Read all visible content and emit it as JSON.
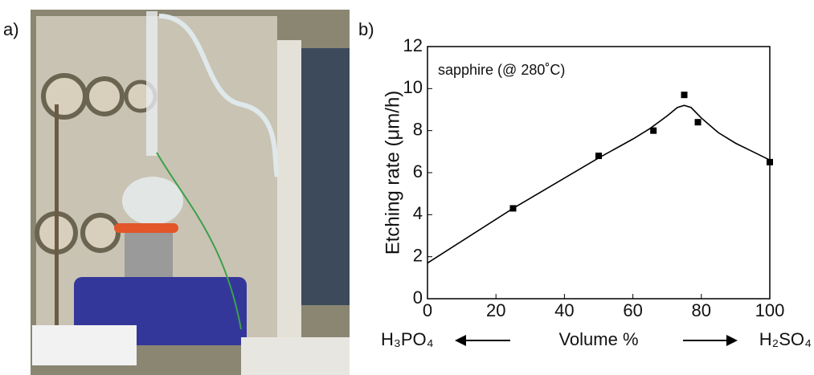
{
  "photo_label": "a)",
  "chart_data": {
    "type": "scatter",
    "panel_label": "b)",
    "annotation": "sapphire (@ 280˚C)",
    "ylabel": "Etching rate (μm/h)",
    "xlabel": "Volume %",
    "left_label": "H₃PO₄",
    "right_label": "H₂SO₄",
    "x": [
      25,
      50,
      66,
      75,
      79,
      100
    ],
    "values": [
      4.3,
      6.8,
      8.0,
      9.7,
      8.4,
      6.5
    ],
    "curve": {
      "x": [
        0,
        25,
        50,
        60,
        65,
        70,
        73,
        75,
        77,
        80,
        85,
        90,
        95,
        100
      ],
      "values": [
        1.7,
        4.3,
        6.7,
        7.6,
        8.1,
        8.7,
        9.1,
        9.2,
        9.1,
        8.6,
        7.9,
        7.4,
        7.0,
        6.6
      ]
    },
    "color": "#000000",
    "xlim": [
      0,
      100
    ],
    "ylim": [
      0,
      12
    ],
    "xticks": [
      0,
      20,
      40,
      60,
      80,
      100
    ],
    "yticks": [
      0,
      2,
      4,
      6,
      8,
      10,
      12
    ]
  }
}
